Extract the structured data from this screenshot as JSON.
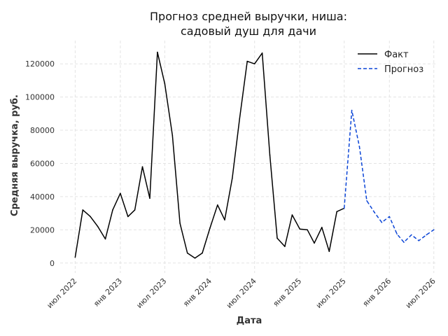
{
  "chart_data": {
    "type": "line",
    "title_lines": [
      "Прогноз средней выручки, ниша:",
      "садовый душ для дачи"
    ],
    "xlabel": "Дата",
    "ylabel": "Средняя выручка, руб.",
    "ylim": [
      -6000,
      134000
    ],
    "xlim": [
      "2022-05-01",
      "2026-07-16"
    ],
    "grid": true,
    "legend_position": "top-right",
    "y_ticks": [
      0,
      20000,
      40000,
      60000,
      80000,
      100000,
      120000
    ],
    "x_ticks": [
      {
        "date": "2022-07-01",
        "label": "июл 2022"
      },
      {
        "date": "2023-01-01",
        "label": "янв 2023"
      },
      {
        "date": "2023-07-01",
        "label": "июл 2023"
      },
      {
        "date": "2024-01-01",
        "label": "янв 2024"
      },
      {
        "date": "2024-07-01",
        "label": "июл 2024"
      },
      {
        "date": "2025-01-01",
        "label": "янв 2025"
      },
      {
        "date": "2025-07-01",
        "label": "июл 2025"
      },
      {
        "date": "2026-01-01",
        "label": "янв 2026"
      },
      {
        "date": "2026-07-01",
        "label": "июл 2026"
      }
    ],
    "series": [
      {
        "name": "Факт",
        "color": "#000000",
        "dashed": false,
        "x": [
          "2022-07-01",
          "2022-08-01",
          "2022-09-01",
          "2022-10-01",
          "2022-11-01",
          "2022-12-01",
          "2023-01-01",
          "2023-02-01",
          "2023-03-01",
          "2023-04-01",
          "2023-05-01",
          "2023-06-01",
          "2023-07-01",
          "2023-08-01",
          "2023-09-01",
          "2023-10-01",
          "2023-11-01",
          "2023-12-01",
          "2024-01-01",
          "2024-02-01",
          "2024-03-01",
          "2024-04-01",
          "2024-05-01",
          "2024-06-01",
          "2024-07-01",
          "2024-08-01",
          "2024-09-01",
          "2024-10-01",
          "2024-11-01",
          "2024-12-01",
          "2025-01-01",
          "2025-02-01",
          "2025-03-01",
          "2025-04-01",
          "2025-05-01",
          "2025-06-01",
          "2025-07-01"
        ],
        "y": [
          3500,
          32000,
          28000,
          22000,
          14500,
          32000,
          42000,
          28000,
          32000,
          58000,
          39000,
          127000,
          108000,
          77000,
          24000,
          6000,
          3000,
          6000,
          21000,
          35000,
          26000,
          51000,
          87000,
          121500,
          120000,
          126500,
          65000,
          15000,
          10000,
          29000,
          20500,
          20000,
          12000,
          21500,
          7000,
          31000,
          33000
        ]
      },
      {
        "name": "Прогноз",
        "color": "#0a44d6",
        "dashed": true,
        "x": [
          "2025-07-01",
          "2025-08-01",
          "2025-09-01",
          "2025-10-01",
          "2025-11-01",
          "2025-12-01",
          "2026-01-01",
          "2026-02-01",
          "2026-03-01",
          "2026-04-01",
          "2026-05-01",
          "2026-06-01",
          "2026-07-01"
        ],
        "y": [
          33000,
          92000,
          70000,
          37500,
          30500,
          24500,
          28000,
          17500,
          12500,
          17000,
          13500,
          17000,
          20000
        ]
      }
    ]
  }
}
